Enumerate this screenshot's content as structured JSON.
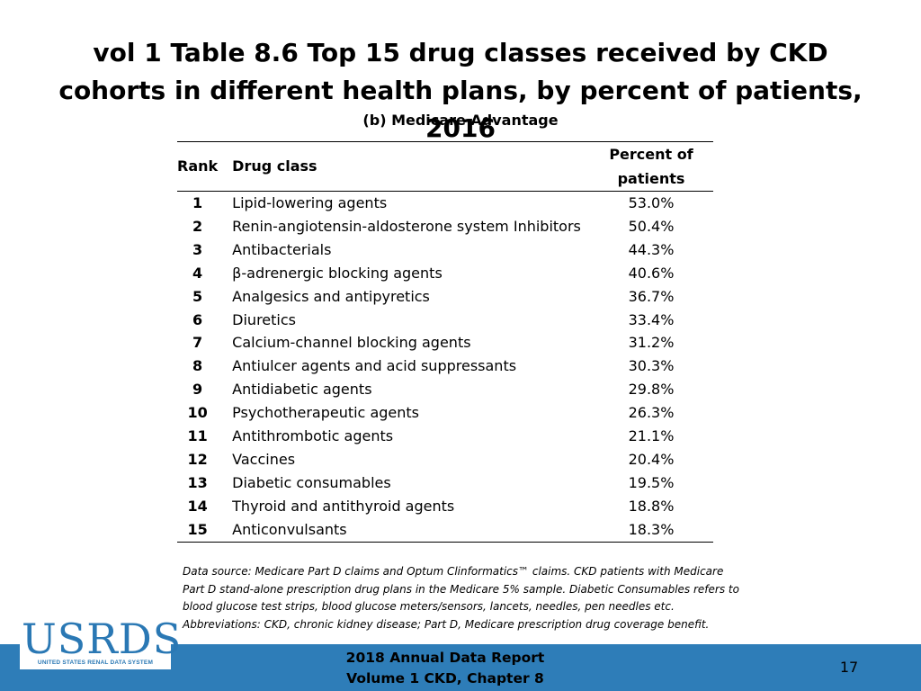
{
  "slide": {
    "title": "vol 1 Table 8.6 Top 15 drug classes received by CKD cohorts in different health plans, by percent of patients, 2016",
    "subtitle": "(b) Medicare Advantage"
  },
  "table": {
    "headers": {
      "rank": "Rank",
      "drug_class": "Drug class",
      "percent": "Percent of patients"
    },
    "rows": [
      {
        "rank": "1",
        "drug_class": "Lipid-lowering agents",
        "percent": "53.0%"
      },
      {
        "rank": "2",
        "drug_class": "Renin-angiotensin-aldosterone system Inhibitors",
        "percent": "50.4%"
      },
      {
        "rank": "3",
        "drug_class": "Antibacterials",
        "percent": "44.3%"
      },
      {
        "rank": "4",
        "drug_class": "β-adrenergic blocking agents",
        "percent": "40.6%"
      },
      {
        "rank": "5",
        "drug_class": "Analgesics and antipyretics",
        "percent": "36.7%"
      },
      {
        "rank": "6",
        "drug_class": "Diuretics",
        "percent": "33.4%"
      },
      {
        "rank": "7",
        "drug_class": "Calcium-channel blocking agents",
        "percent": "31.2%"
      },
      {
        "rank": "8",
        "drug_class": "Antiulcer agents and acid suppressants",
        "percent": "30.3%"
      },
      {
        "rank": "9",
        "drug_class": "Antidiabetic agents",
        "percent": "29.8%"
      },
      {
        "rank": "10",
        "drug_class": "Psychotherapeutic agents",
        "percent": "26.3%"
      },
      {
        "rank": "11",
        "drug_class": "Antithrombotic agents",
        "percent": "21.1%"
      },
      {
        "rank": "12",
        "drug_class": "Vaccines",
        "percent": "20.4%"
      },
      {
        "rank": "13",
        "drug_class": "Diabetic consumables",
        "percent": "19.5%"
      },
      {
        "rank": "14",
        "drug_class": "Thyroid and antithyroid agents",
        "percent": "18.8%"
      },
      {
        "rank": "15",
        "drug_class": "Anticonvulsants",
        "percent": "18.3%"
      }
    ]
  },
  "note": "Data source: Medicare Part D claims and Optum Clinformatics™ claims. CKD patients with Medicare Part D stand-alone prescription drug plans in the Medicare 5% sample. Diabetic Consumables refers to blood glucose test strips, blood glucose meters/sensors, lancets, needles, pen needles etc. Abbreviations: CKD, chronic kidney disease; Part D, Medicare prescription drug coverage benefit.",
  "footer": {
    "logo_word": "USRDS",
    "logo_tagline": "UNITED STATES RENAL DATA SYSTEM",
    "report_line1": "2018 Annual Data Report",
    "report_line2": "Volume 1 CKD, Chapter 8",
    "page_number": "17"
  },
  "colors": {
    "footer_bar": "#2e7db8",
    "logo_blue": "#2a78b4"
  }
}
